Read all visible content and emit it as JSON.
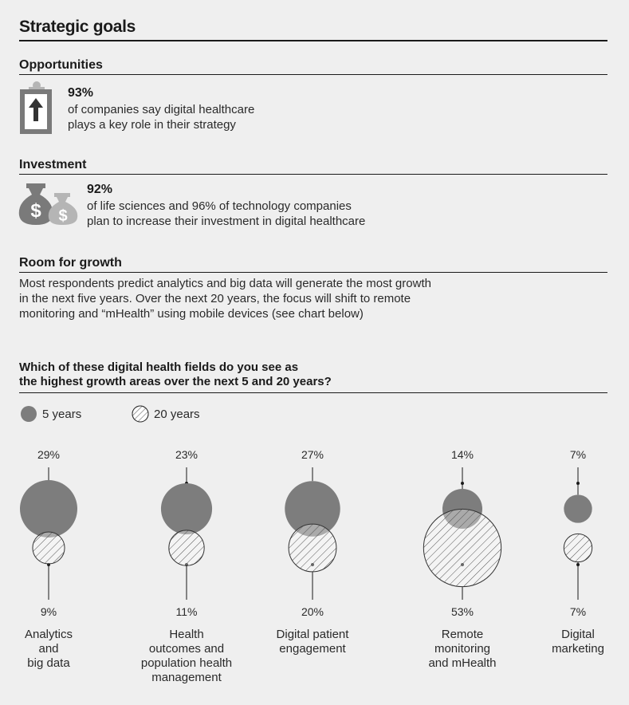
{
  "page": {
    "title": "Strategic goals"
  },
  "opportunities": {
    "title": "Opportunities",
    "icon": "clipboard-arrow-up-icon",
    "value": "93%",
    "text_line1": "of companies say digital healthcare",
    "text_line2": "plays a key role in their strategy"
  },
  "investment": {
    "title": "Investment",
    "icon": "money-bags-icon",
    "value": "92%",
    "text_line1": "of life sciences and 96% of technology companies",
    "text_line2": "plan to increase their investment in digital healthcare"
  },
  "growth": {
    "title": "Room for growth",
    "text_line1": "Most respondents predict analytics and big data will generate the most growth",
    "text_line2": "in the next five years. Over the next 20 years, the focus will shift to remote",
    "text_line3": "monitoring and “mHealth” using mobile devices (see chart below)"
  },
  "chart_data": {
    "type": "bubble",
    "question_line1": "Which of these digital health fields do you see as",
    "question_line2": "the highest growth areas over the next 5 and 20 years?",
    "series": [
      {
        "name": "5 years",
        "style": "solid",
        "color": "#7d7d7d",
        "values": [
          29,
          23,
          27,
          14,
          7
        ]
      },
      {
        "name": "20 years",
        "style": "hatched",
        "color": "#ffffff",
        "values": [
          9,
          11,
          20,
          53,
          7
        ]
      }
    ],
    "categories": [
      "Analytics and big data",
      "Health outcomes and population health management",
      "Digital patient engagement",
      "Remote monitoring and mHealth",
      "Digital marketing"
    ],
    "categories_lines": [
      [
        "Analytics",
        "and",
        "big data"
      ],
      [
        "Health",
        "outcomes and",
        "population health",
        "management"
      ],
      [
        "Digital patient",
        "engagement"
      ],
      [
        "Remote",
        "monitoring",
        "and mHealth"
      ],
      [
        "Digital",
        "marketing"
      ]
    ],
    "labels_5yr": [
      "29%",
      "23%",
      "27%",
      "14%",
      "7%"
    ],
    "labels_20yr": [
      "9%",
      "11%",
      "20%",
      "53%",
      "7%"
    ]
  }
}
